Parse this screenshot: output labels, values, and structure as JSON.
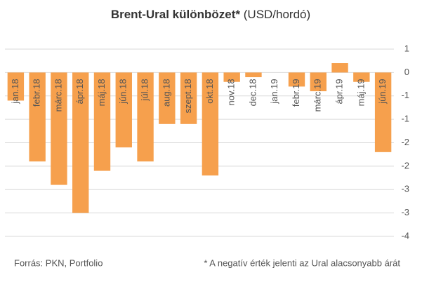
{
  "chart_data": {
    "type": "bar",
    "title": "Brent-Ural különbözet*",
    "title_unit": "(USD/hordó)",
    "source": "Forrás: PKN, Portfolio",
    "note": "* A negatív érték jelenti az Ural alacsonyabb árát",
    "categories": [
      "jan.18",
      "febr.18",
      "márc.18",
      "ápr.18",
      "máj.18",
      "jún.18",
      "júl.18",
      "aug.18",
      "szept.18",
      "okt.18",
      "nov.18",
      "dec.18",
      "jan.19",
      "febr.19",
      "márc.19",
      "ápr.19",
      "máj.19",
      "jún.19"
    ],
    "values": [
      -0.6,
      -1.9,
      -2.4,
      -3.0,
      -2.1,
      -1.6,
      -1.9,
      -1.1,
      -1.1,
      -2.2,
      -0.2,
      -0.1,
      0,
      -0.3,
      -0.4,
      0.2,
      -0.2,
      -1.7
    ],
    "color": "#f6a04d",
    "ylim": [
      -3.5,
      0.5
    ],
    "yticks": [
      {
        "value": 0.5,
        "label": "1"
      },
      0,
      {
        "value": -0.5,
        "label": "-1"
      },
      -1,
      {
        "value": -1.5,
        "label": "-2"
      },
      -2,
      {
        "value": -2.5,
        "label": "-3"
      },
      -3,
      {
        "value": -3.5,
        "label": "-4"
      }
    ],
    "grid": true
  }
}
